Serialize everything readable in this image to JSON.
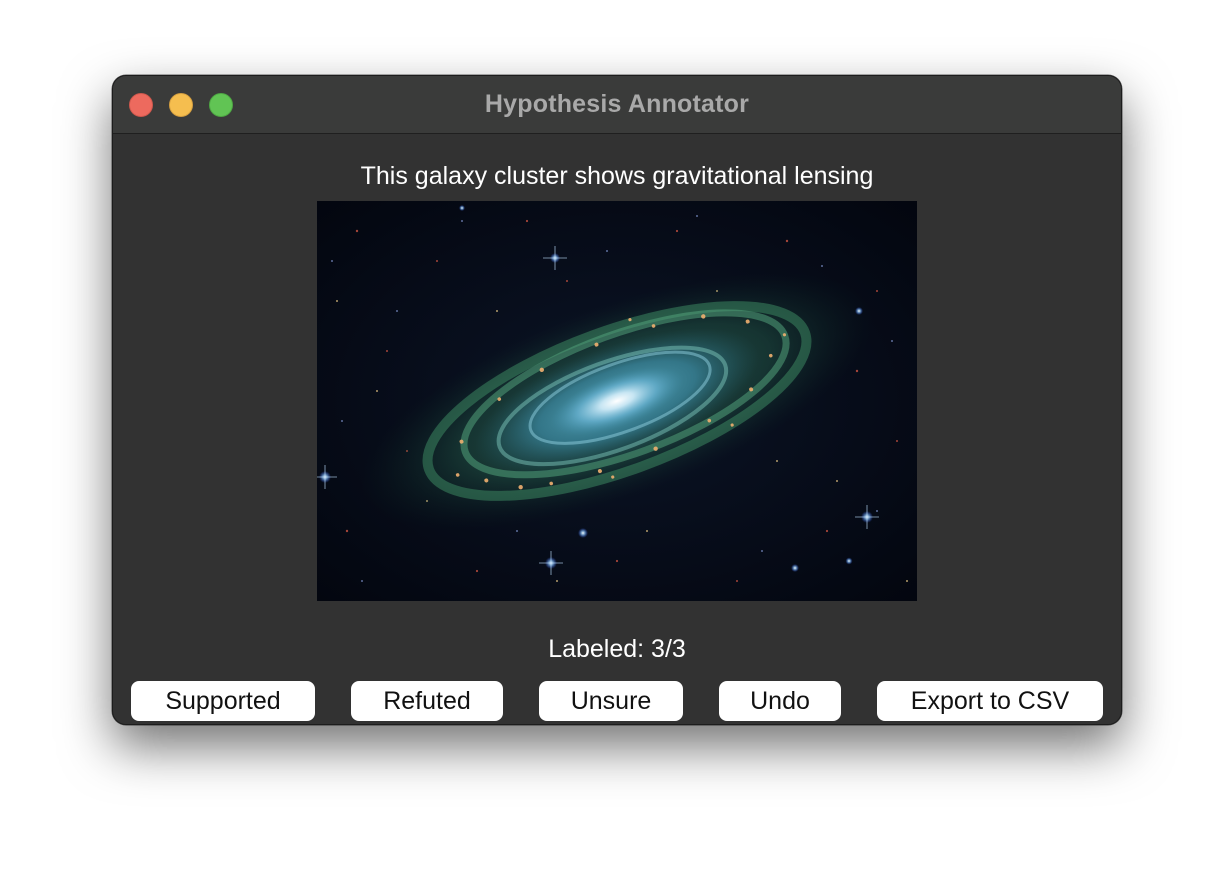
{
  "window": {
    "title": "Hypothesis Annotator"
  },
  "hypothesis": {
    "text": "This galaxy cluster shows gravitational lensing"
  },
  "image": {
    "subject": "spiral-galaxy"
  },
  "status": {
    "labeled_text": "Labeled: 3/3"
  },
  "buttons": {
    "supported": "Supported",
    "refuted": "Refuted",
    "unsure": "Unsure",
    "undo": "Undo",
    "export": "Export to CSV"
  },
  "colors": {
    "window_bg": "#323232",
    "titlebar_bg": "#3a3b3a",
    "close": "#ed6a5e",
    "minimize": "#f5be4f",
    "maximize": "#61c454",
    "button_bg": "#ffffff"
  }
}
